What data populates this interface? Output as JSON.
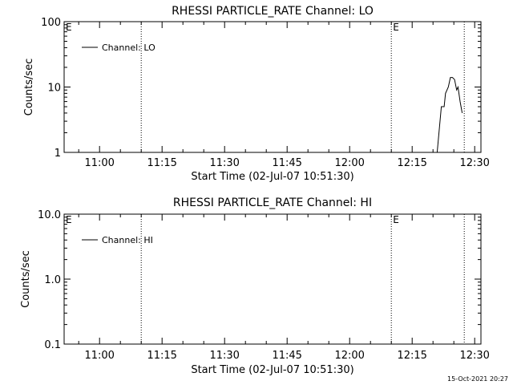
{
  "chart_data": [
    {
      "type": "line",
      "title": "RHESSI PARTICLE_RATE Channel: LO",
      "xlabel": "Start Time (02-Jul-07 10:51:30)",
      "ylabel": "Counts/sec",
      "yscale": "log",
      "ylim": [
        1,
        100
      ],
      "xlim": [
        "10:51:30",
        "12:31:30"
      ],
      "x_ticks": [
        "11:00",
        "11:15",
        "11:30",
        "11:45",
        "12:00",
        "12:15",
        "12:30"
      ],
      "y_ticks": [
        "1",
        "10",
        "100"
      ],
      "grid": false,
      "legend_position": "top-left",
      "series": [
        {
          "name": "Channel: LO",
          "x": [
            "12:21:00",
            "12:22:00",
            "12:22:40",
            "12:23:00",
            "12:23:40",
            "12:24:10",
            "12:24:40",
            "12:25:10",
            "12:25:40",
            "12:26:00",
            "12:26:30",
            "12:27:00"
          ],
          "values": [
            1,
            5,
            5,
            8,
            10,
            14,
            14,
            13,
            9,
            10,
            6,
            4
          ]
        }
      ],
      "vertical_markers": [
        {
          "time": "11:10:00",
          "style": "dotted"
        },
        {
          "time": "12:10:00",
          "style": "dotted",
          "label": "E"
        },
        {
          "time": "12:27:30",
          "style": "dotted"
        }
      ],
      "corner_label": "E"
    },
    {
      "type": "line",
      "title": "RHESSI PARTICLE_RATE Channel: HI",
      "xlabel": "Start Time (02-Jul-07 10:51:30)",
      "ylabel": "Counts/sec",
      "yscale": "log",
      "ylim": [
        0.1,
        10
      ],
      "xlim": [
        "10:51:30",
        "12:31:30"
      ],
      "x_ticks": [
        "11:00",
        "11:15",
        "11:30",
        "11:45",
        "12:00",
        "12:15",
        "12:30"
      ],
      "y_ticks": [
        "0.1",
        "1.0",
        "10.0"
      ],
      "grid": false,
      "legend_position": "top-left",
      "series": [
        {
          "name": "Channel: HI",
          "x": [],
          "values": []
        }
      ],
      "vertical_markers": [
        {
          "time": "11:10:00",
          "style": "dotted"
        },
        {
          "time": "12:10:00",
          "style": "dotted",
          "label": "E"
        },
        {
          "time": "12:27:30",
          "style": "dotted"
        }
      ],
      "corner_label": "E"
    }
  ],
  "footer": "15-Oct-2021 20:27"
}
